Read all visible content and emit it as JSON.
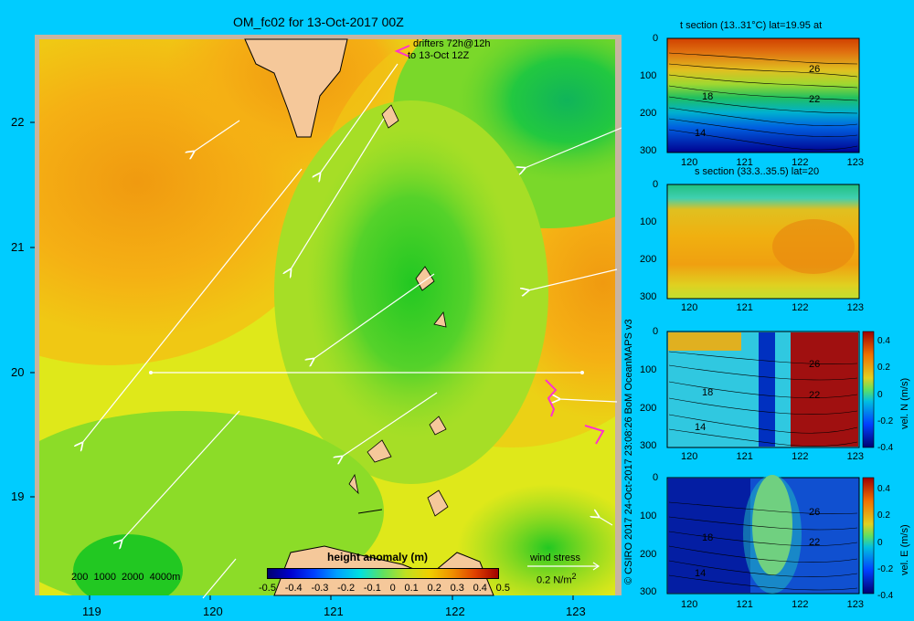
{
  "title": "OM_fc02 for 13-Oct-2017 00Z",
  "colors": {
    "background": "#00ccff",
    "frame": "#c8b4a0",
    "land": "#f5c89a",
    "vector": "#ffffff",
    "drifter": "#ff33cc"
  },
  "main_map": {
    "lon_ticks": [
      "119",
      "120",
      "121",
      "122",
      "123"
    ],
    "lat_ticks": [
      "22",
      "21",
      "20",
      "19"
    ],
    "drifter_legend": [
      "drifters 72h@12h",
      "to 13-Oct 12Z"
    ],
    "depth_contours_label": "200  1000  2000  4000m",
    "colorbar": {
      "title": "height anomaly (m)",
      "tick_labels": [
        "-0.5",
        "-0.4",
        "-0.3",
        "-0.2",
        "-0.1",
        "0",
        "0.1",
        "0.2",
        "0.3",
        "0.4",
        "0.5"
      ]
    },
    "wind_stress": {
      "label": "wind stress",
      "scale_label": "0.2 N/m",
      "superscript": "2"
    }
  },
  "copyright": "© CSIRO 2017   24-Oct-2017 23:08:26 BoM OceanMAPS v3",
  "panels": [
    {
      "id": "t-section",
      "title": "t section (13..31°C) lat=19.95 at",
      "contour_labels": [
        "26",
        "22",
        "18",
        "14"
      ],
      "colorbar": null
    },
    {
      "id": "s-section",
      "title": "s section (33.3..35.5) lat=20",
      "contour_labels": [],
      "colorbar": null
    },
    {
      "id": "vel-n-section",
      "title": "",
      "contour_labels": [
        "26",
        "22",
        "18",
        "14"
      ],
      "colorbar": {
        "label": "vel. N (m/s)",
        "tick_labels": [
          "0.4",
          "0.2",
          "0",
          "-0.2",
          "-0.4"
        ]
      }
    },
    {
      "id": "vel-e-section",
      "title": "",
      "contour_labels": [
        "26",
        "22",
        "18",
        "14"
      ],
      "colorbar": {
        "label": "vel. E (m/s)",
        "tick_labels": [
          "0.4",
          "0.2",
          "0",
          "-0.2",
          "-0.4"
        ]
      }
    }
  ],
  "section_axes": {
    "x_ticks": [
      "120",
      "121",
      "122",
      "123"
    ],
    "y_ticks": [
      "0",
      "100",
      "200",
      "300"
    ]
  },
  "chart_data": [
    {
      "type": "heatmap",
      "title": "OM_fc02 for 13-Oct-2017 00Z",
      "x_range": [
        118.5,
        123.5
      ],
      "y_range": [
        18.3,
        22.7
      ],
      "x_ticks": [
        119,
        120,
        121,
        122,
        123
      ],
      "y_ticks": [
        19,
        20,
        21,
        22
      ],
      "colorbar_label": "height anomaly (m)",
      "colorbar_range": [
        -0.5,
        0.5
      ],
      "section_line": {
        "lat": 20.0,
        "lon_start": 119.5,
        "lon_end": 123.0
      }
    },
    {
      "type": "heatmap",
      "title": "t section (13..31°C) lat=19.95 at",
      "x_range": [
        119.5,
        123.2
      ],
      "y_range": [
        300,
        0
      ],
      "x_ticks": [
        120,
        121,
        122,
        123
      ],
      "y_ticks": [
        0,
        100,
        200,
        300
      ],
      "contour_labels": [
        26,
        22,
        18,
        14
      ]
    },
    {
      "type": "heatmap",
      "title": "s section (33.3..35.5) lat=20",
      "x_range": [
        119.5,
        123.2
      ],
      "y_range": [
        300,
        0
      ],
      "x_ticks": [
        120,
        121,
        122,
        123
      ],
      "y_ticks": [
        0,
        100,
        200,
        300
      ]
    },
    {
      "type": "heatmap",
      "title": "",
      "x_range": [
        119.5,
        123.2
      ],
      "y_range": [
        300,
        0
      ],
      "colorbar_label": "vel. N (m/s)",
      "colorbar_range": [
        -0.4,
        0.4
      ]
    },
    {
      "type": "heatmap",
      "title": "",
      "x_range": [
        119.5,
        123.2
      ],
      "y_range": [
        300,
        0
      ],
      "colorbar_label": "vel. E (m/s)",
      "colorbar_range": [
        -0.4,
        0.4
      ]
    }
  ]
}
